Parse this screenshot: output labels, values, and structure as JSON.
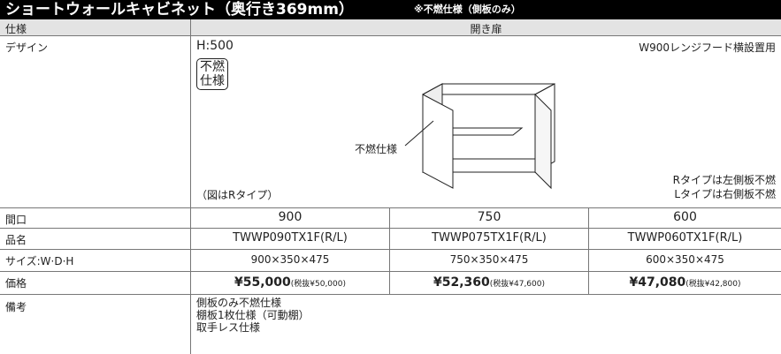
{
  "header": {
    "title": "ショートウォールキャビネット（奥行き369mm）",
    "note": "※不燃仕様（側板のみ）"
  },
  "table": {
    "spec": {
      "label": "仕様",
      "value": "開き扉"
    },
    "design": {
      "label": "デザイン",
      "height": "H:500",
      "usage": "W900レンジフード横設置用",
      "badge": [
        "不燃",
        "仕様"
      ],
      "callout": "不燃仕様",
      "caption": "（図はRタイプ）",
      "notes": [
        "Rタイプは左側板不燃",
        "Lタイプは右側板不燃"
      ]
    },
    "rows": [
      [
        "間口",
        "900",
        "750",
        "600"
      ],
      [
        "品名",
        "TWWP090TX1F(R/L)",
        "TWWP075TX1F(R/L)",
        "TWWP060TX1F(R/L)"
      ],
      [
        "サイズ:W·D·H",
        "900×350×475",
        "750×350×475",
        "600×350×475"
      ],
      [
        "価格",
        {
          "price": "¥55,000",
          "tax_excluded": "(税抜¥50,000)"
        },
        {
          "price": "¥52,360",
          "tax_excluded": "(税抜¥47,600)"
        },
        {
          "price": "¥47,080",
          "tax_excluded": "(税抜¥42,800)"
        }
      ]
    ],
    "remarks": {
      "label": "備考",
      "lines": [
        "側板のみ不燃仕様",
        "棚板1枚仕様（可動棚）",
        "取手レス仕様"
      ]
    }
  }
}
